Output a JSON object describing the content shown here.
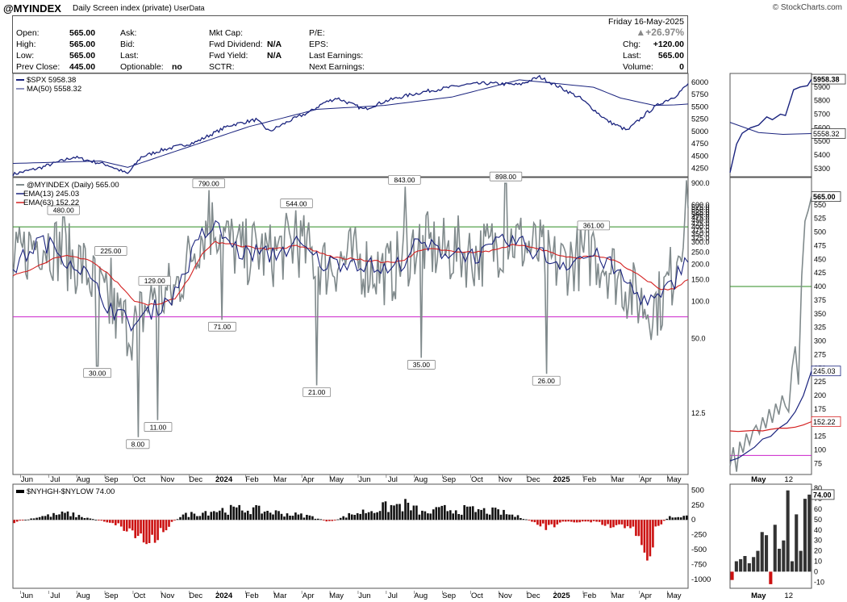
{
  "header": {
    "symbol": "@MYINDEX",
    "subtitle": "Daily Screen index (private)",
    "userdata": "UserData",
    "watermark": "© StockCharts.com"
  },
  "quote": {
    "open_label": "Open:",
    "open": "565.00",
    "high_label": "High:",
    "high": "565.00",
    "low_label": "Low:",
    "low": "565.00",
    "prev_label": "Prev Close:",
    "prev": "445.00",
    "ask_label": "Ask:",
    "bid_label": "Bid:",
    "last_label": "Last:",
    "optionable_label": "Optionable:",
    "optionable": "no",
    "mktcap_label": "Mkt Cap:",
    "fwddiv_label": "Fwd Dividend:",
    "fwddiv": "N/A",
    "fwdyield_label": "Fwd Yield:",
    "fwdyield": "N/A",
    "sctr_label": "SCTR:",
    "pe_label": "P/E:",
    "eps_label": "EPS:",
    "lastearn_label": "Last Earnings:",
    "nextearn_label": "Next Earnings:",
    "date": "Friday  16-May-2025",
    "pct_change": "▲+26.97%",
    "chg_label": "Chg:",
    "chg": "+120.00",
    "last2_label": "Last:",
    "last2": "565.00",
    "volume_label": "Volume:",
    "volume": "0"
  },
  "colors": {
    "spx": "#1a237e",
    "ma50": "#1a237e",
    "index": "#808a8c",
    "ema13": "#1a237e",
    "ema63": "#d42020",
    "ref_green": "#2e8b22",
    "ref_magenta": "#cc22cc",
    "hist_pos": "#111111",
    "hist_neg": "#cc1111"
  },
  "chart_data": [
    {
      "type": "line",
      "title": "$SPX",
      "legend": [
        {
          "name": "$SPX",
          "value": "5958.38"
        },
        {
          "name": "MA(50)",
          "value": "5558.32"
        }
      ],
      "yticks": [
        4250,
        4500,
        4750,
        5000,
        5250,
        5500,
        5750,
        6000
      ],
      "ylim": [
        4080,
        6180
      ],
      "scale": "linear",
      "last_label": "5958.38",
      "ma_label": "5558.32",
      "zoom_yticks": [
        5300,
        5400,
        5500,
        5600,
        5700,
        5800,
        5900
      ],
      "zoom_ylim": [
        5240,
        6000
      ],
      "anchors_x": [
        0,
        4,
        9,
        14,
        17,
        19,
        22,
        27,
        32,
        36,
        38,
        41,
        44,
        46,
        48,
        52,
        55,
        58,
        61,
        64,
        67,
        70,
        72,
        75,
        78,
        81,
        84,
        88,
        91,
        94,
        96,
        98,
        100
      ],
      "anchors_y": [
        4130,
        4260,
        4480,
        4320,
        4140,
        4480,
        4620,
        4780,
        5120,
        5240,
        5000,
        5220,
        5400,
        5580,
        5680,
        5450,
        5610,
        5720,
        5810,
        5880,
        5950,
        5980,
        5970,
        5950,
        6110,
        5900,
        5680,
        5220,
        5020,
        5390,
        5580,
        5710,
        5958
      ],
      "ma_x": [
        0,
        13,
        17,
        25,
        35,
        45,
        55,
        65,
        75,
        86,
        90,
        95,
        98,
        100
      ],
      "ma_y": [
        4350,
        4400,
        4270,
        4640,
        5100,
        5450,
        5530,
        5700,
        6050,
        5900,
        5680,
        5530,
        5540,
        5558
      ]
    },
    {
      "type": "line",
      "title": "@MYINDEX (Daily)",
      "legend": [
        {
          "name": "@MYINDEX (Daily)",
          "value": "565.00"
        },
        {
          "name": "EMA(13)",
          "value": "245.03"
        },
        {
          "name": "EMA(63)",
          "value": "152.22"
        }
      ],
      "scale": "log",
      "yticks": [
        12.5,
        50.0,
        100.0,
        150.0,
        200.0,
        250.0,
        300.0,
        325.0,
        350.0,
        375.0,
        400.0,
        425.0,
        450.0,
        475.0,
        500.0,
        525.0,
        550.0,
        575.0,
        600.0,
        900.0
      ],
      "ylim": [
        4,
        1000
      ],
      "reference_lines": [
        400,
        75
      ],
      "annotations": [
        {
          "label": "480.00",
          "value": 480,
          "x": 7.5,
          "pos": "above"
        },
        {
          "label": "225.00",
          "value": 225,
          "x": 14.5,
          "pos": "above"
        },
        {
          "label": "30.00",
          "value": 30,
          "x": 12.5,
          "pos": "below"
        },
        {
          "label": "129.00",
          "value": 129,
          "x": 21,
          "pos": "above"
        },
        {
          "label": "8.00",
          "value": 8,
          "x": 18.5,
          "pos": "below"
        },
        {
          "label": "11.00",
          "value": 11,
          "x": 21.5,
          "pos": "below"
        },
        {
          "label": "790.00",
          "value": 790,
          "x": 29,
          "pos": "above"
        },
        {
          "label": "71.00",
          "value": 71,
          "x": 31,
          "pos": "below"
        },
        {
          "label": "544.00",
          "value": 544,
          "x": 42,
          "pos": "above"
        },
        {
          "label": "21.00",
          "value": 21,
          "x": 45,
          "pos": "below"
        },
        {
          "label": "843.00",
          "value": 843,
          "x": 58,
          "pos": "above"
        },
        {
          "label": "35.00",
          "value": 35,
          "x": 60.5,
          "pos": "below"
        },
        {
          "label": "898.00",
          "value": 898,
          "x": 73,
          "pos": "above"
        },
        {
          "label": "26.00",
          "value": 26,
          "x": 79,
          "pos": "below"
        },
        {
          "label": "361.00",
          "value": 361,
          "x": 86,
          "pos": "above"
        }
      ],
      "last_label": "565.00",
      "ema13_label": "245.03",
      "ema63_label": "152.22",
      "zoom_yticks": [
        75,
        100,
        125,
        150,
        175,
        200,
        225,
        250,
        275,
        300,
        325,
        350,
        375,
        400,
        425,
        450,
        475,
        500,
        525,
        550,
        565
      ],
      "zoom_ylim": [
        55,
        600
      ],
      "anchors_x": [
        0,
        2,
        4,
        6,
        8,
        10,
        12,
        14,
        16,
        18,
        20,
        22,
        24,
        26,
        28,
        30,
        32,
        34,
        36,
        38,
        40,
        42,
        44,
        46,
        48,
        50,
        52,
        54,
        56,
        58,
        60,
        62,
        64,
        66,
        68,
        70,
        72,
        74,
        76,
        78,
        80,
        82,
        84,
        86,
        88,
        90,
        92,
        94,
        96,
        98,
        100
      ],
      "anchors_y": [
        180,
        260,
        320,
        280,
        230,
        200,
        140,
        90,
        70,
        60,
        95,
        110,
        120,
        210,
        360,
        420,
        300,
        240,
        260,
        230,
        270,
        300,
        240,
        190,
        210,
        220,
        200,
        180,
        170,
        230,
        300,
        270,
        250,
        260,
        230,
        250,
        300,
        320,
        280,
        250,
        200,
        210,
        230,
        240,
        200,
        150,
        110,
        90,
        100,
        180,
        565
      ],
      "ema13_y": [
        180,
        240,
        310,
        270,
        220,
        190,
        130,
        95,
        75,
        65,
        80,
        95,
        115,
        200,
        340,
        400,
        300,
        240,
        250,
        235,
        260,
        290,
        240,
        200,
        205,
        215,
        200,
        185,
        175,
        220,
        290,
        270,
        250,
        255,
        235,
        245,
        290,
        310,
        275,
        245,
        210,
        205,
        225,
        235,
        205,
        160,
        120,
        100,
        105,
        145,
        245
      ],
      "ema63_y": [
        160,
        175,
        195,
        220,
        235,
        225,
        205,
        170,
        130,
        100,
        95,
        96,
        105,
        150,
        240,
        300,
        295,
        280,
        270,
        265,
        270,
        280,
        265,
        240,
        225,
        220,
        215,
        210,
        205,
        215,
        255,
        265,
        255,
        255,
        250,
        250,
        270,
        285,
        280,
        265,
        245,
        225,
        225,
        235,
        225,
        200,
        170,
        145,
        125,
        125,
        152
      ]
    },
    {
      "type": "bar",
      "title": "$NYHGH-$NYLOW",
      "legend": [
        {
          "name": "$NYHGH-$NYLOW",
          "value": "74.00"
        }
      ],
      "yticks": [
        500,
        250,
        0,
        -250,
        -500,
        -750,
        -1000
      ],
      "ylim": [
        -1150,
        600
      ],
      "last_label": "74.00",
      "zoom_yticks": [
        80,
        70,
        60,
        50,
        40,
        30,
        20,
        10,
        0,
        -10
      ],
      "zoom_ylim": [
        -16,
        84
      ],
      "anchors_x": [
        0,
        4,
        8,
        12,
        15,
        18,
        20,
        22,
        25,
        30,
        35,
        40,
        44,
        47,
        50,
        55,
        58,
        61,
        64,
        68,
        72,
        76,
        79,
        82,
        86,
        89,
        92,
        94,
        95,
        97,
        100
      ],
      "anchors_y": [
        -50,
        60,
        120,
        10,
        -60,
        -250,
        -420,
        -200,
        80,
        180,
        200,
        120,
        70,
        -40,
        100,
        230,
        280,
        120,
        200,
        180,
        150,
        20,
        -150,
        -40,
        -40,
        -150,
        -100,
        -1100,
        -200,
        50,
        74
      ],
      "zoom_bars": [
        -8,
        10,
        12,
        15,
        8,
        14,
        20,
        38,
        35,
        -12,
        45,
        22,
        30,
        78,
        10,
        55,
        20,
        70,
        74
      ]
    }
  ],
  "x_axis": {
    "labels": [
      "Jun",
      "Jul",
      "Aug",
      "Sep",
      "Oct",
      "Nov",
      "Dec",
      "2024",
      "Feb",
      "Mar",
      "Apr",
      "May",
      "Jun",
      "Jul",
      "Aug",
      "Sep",
      "Oct",
      "Nov",
      "Dec",
      "2025",
      "Feb",
      "Mar",
      "Apr",
      "May"
    ],
    "bold": [
      "2024",
      "2025"
    ],
    "zoom_labels": [
      "May",
      "12"
    ]
  }
}
